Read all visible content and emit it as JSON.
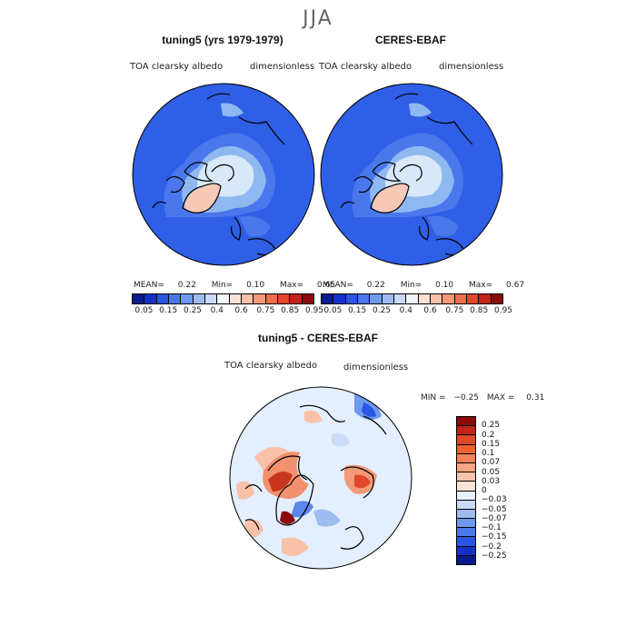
{
  "season": "JJA",
  "panel_left": {
    "title": "tuning5 (yrs 1979-1979)",
    "variable": "TOA clearsky albedo",
    "units": "dimensionless",
    "mean_label": "MEAN=",
    "mean": "0.22",
    "min_label": "Min=",
    "min": "0.10",
    "max_label": "Max=",
    "max": "0.65"
  },
  "panel_right": {
    "title": "CERES-EBAF",
    "variable": "TOA clearsky albedo",
    "units": "dimensionless",
    "mean_label": "MEAN=",
    "mean": "0.22",
    "min_label": "Min=",
    "min": "0.10",
    "max_label": "Max=",
    "max": "0.67"
  },
  "panel_diff": {
    "title": "tuning5 - CERES-EBAF",
    "variable": "TOA clearsky albedo",
    "units": "dimensionless",
    "min_label": "MIN =",
    "min": "−0.25",
    "max_label": "MAX =",
    "max": "0.31"
  },
  "colorbar_abs": {
    "tick_labels": [
      "0.05",
      "0.15",
      "0.25",
      "0.4",
      "0.6",
      "0.75",
      "0.85",
      "0.95"
    ],
    "colors": [
      "#0a1b8c",
      "#1432c8",
      "#2a55e6",
      "#4a78ec",
      "#6f98ef",
      "#9fbcf1",
      "#c9dbf6",
      "#f3f7fb",
      "#fbe1d6",
      "#f8c1a8",
      "#f39a78",
      "#ec6e4a",
      "#e0472b",
      "#c32318",
      "#8b0a0a"
    ]
  },
  "colorbar_diff": {
    "tick_labels": [
      "0.25",
      "0.2",
      "0.15",
      "0.1",
      "0.07",
      "0.05",
      "0.03",
      "0",
      "−0.03",
      "−0.05",
      "−0.07",
      "−0.1",
      "−0.15",
      "−0.2",
      "−0.25"
    ],
    "colors": [
      "#8b0a0a",
      "#c32318",
      "#e0472b",
      "#f0622d",
      "#f4835a",
      "#f7a583",
      "#f9c4ab",
      "#fbe1d6",
      "#e8f1fb",
      "#c9dbf6",
      "#9fbcf1",
      "#6f98ef",
      "#4a78ec",
      "#2a55e6",
      "#1432c8",
      "#0a1b8c"
    ]
  },
  "map_colors": {
    "ocean_blue": "#2f5fe6",
    "pale": "#d8e8f8",
    "light_blue": "#8fb8f0",
    "greenland": "#f7c8b6",
    "diff_bg": "#e3efff",
    "diff_red": "#f29070",
    "diff_darkred": "#c8361d",
    "diff_blue": "#5b86ea"
  }
}
